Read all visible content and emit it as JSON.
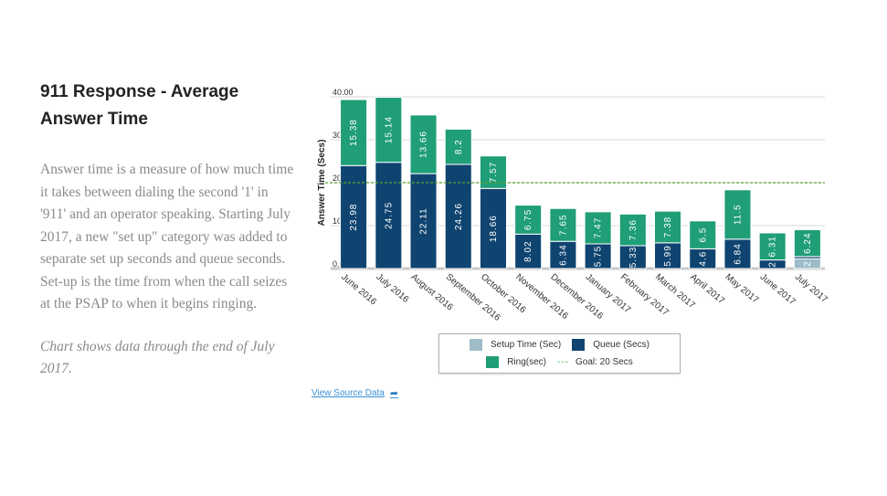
{
  "page": {
    "title": "911 Response - Average Answer Time",
    "description": "Answer time is a measure of how much time it takes between dialing the second '1' in '911' and an operator speaking. Starting July 2017, a new \"set up\" category was added to separate set up seconds and queue seconds. Set-up is the time from when the call seizes at the PSAP to when it begins ringing.",
    "note": "Chart shows data through the end of July 2017.",
    "source_link": "View Source Data",
    "source_icon": "arrow-right-icon"
  },
  "legend": {
    "setup": "Setup Time (Sec)",
    "queue": "Queue (Secs)",
    "ring": "Ring(sec)",
    "goal": "Goal: 20 Secs",
    "goal_marker": "---"
  },
  "colors": {
    "setup": "#9dbcc8",
    "queue": "#0f4470",
    "ring": "#1f9e77",
    "goal": "#5aa532",
    "grid": "#d9d9d9"
  },
  "chart_data": {
    "type": "bar",
    "stacked": true,
    "title": "",
    "xlabel": "",
    "ylabel": "Answer Time (Secs)",
    "ylim": [
      0,
      40
    ],
    "yticks": [
      "0.00",
      "10.00",
      "20.00",
      "30.00",
      "40.00"
    ],
    "ytick_values": [
      0,
      10,
      20,
      30,
      40
    ],
    "grid": true,
    "legend_position": "bottom",
    "categories": [
      "June 2016",
      "July 2016",
      "August 2016",
      "September 2016",
      "October 2016",
      "November 2016",
      "December 2016",
      "January 2017",
      "February 2017",
      "March 2017",
      "April 2017",
      "May 2017",
      "June 2017",
      "July 2017"
    ],
    "series": [
      {
        "name": "Setup Time (Sec)",
        "key": "setup",
        "values": [
          0,
          0,
          0,
          0,
          0,
          0,
          0,
          0,
          0,
          0,
          0,
          0,
          0,
          2.3
        ],
        "labels": [
          "",
          "",
          "",
          "",
          "",
          "",
          "",
          "",
          "",
          "",
          "",
          "",
          "",
          "2"
        ]
      },
      {
        "name": "Queue (Secs)",
        "key": "queue",
        "values": [
          23.98,
          24.75,
          22.11,
          24.26,
          18.66,
          8.02,
          6.34,
          5.75,
          5.33,
          5.99,
          4.6,
          6.84,
          2,
          0.5
        ],
        "labels": [
          "23.98",
          "24.75",
          "22.11",
          "24.26",
          "18.66",
          "8.02",
          "6.34",
          "5.75",
          "5.33",
          "5.99",
          "4.6",
          "6.84",
          "2",
          ""
        ]
      },
      {
        "name": "Ring(sec)",
        "key": "ring",
        "values": [
          15.38,
          15.14,
          13.66,
          8.2,
          7.57,
          6.75,
          7.65,
          7.47,
          7.36,
          7.38,
          6.5,
          11.5,
          6.31,
          6.24
        ],
        "labels": [
          "15.38",
          "15.14",
          "13.66",
          "8.2",
          "7.57",
          "6.75",
          "7.65",
          "7.47",
          "7.36",
          "7.38",
          "6.5",
          "11.5",
          "6.31",
          "6.24"
        ]
      }
    ],
    "goal_line": {
      "name": "Goal: 20 Secs",
      "value": 20
    }
  }
}
